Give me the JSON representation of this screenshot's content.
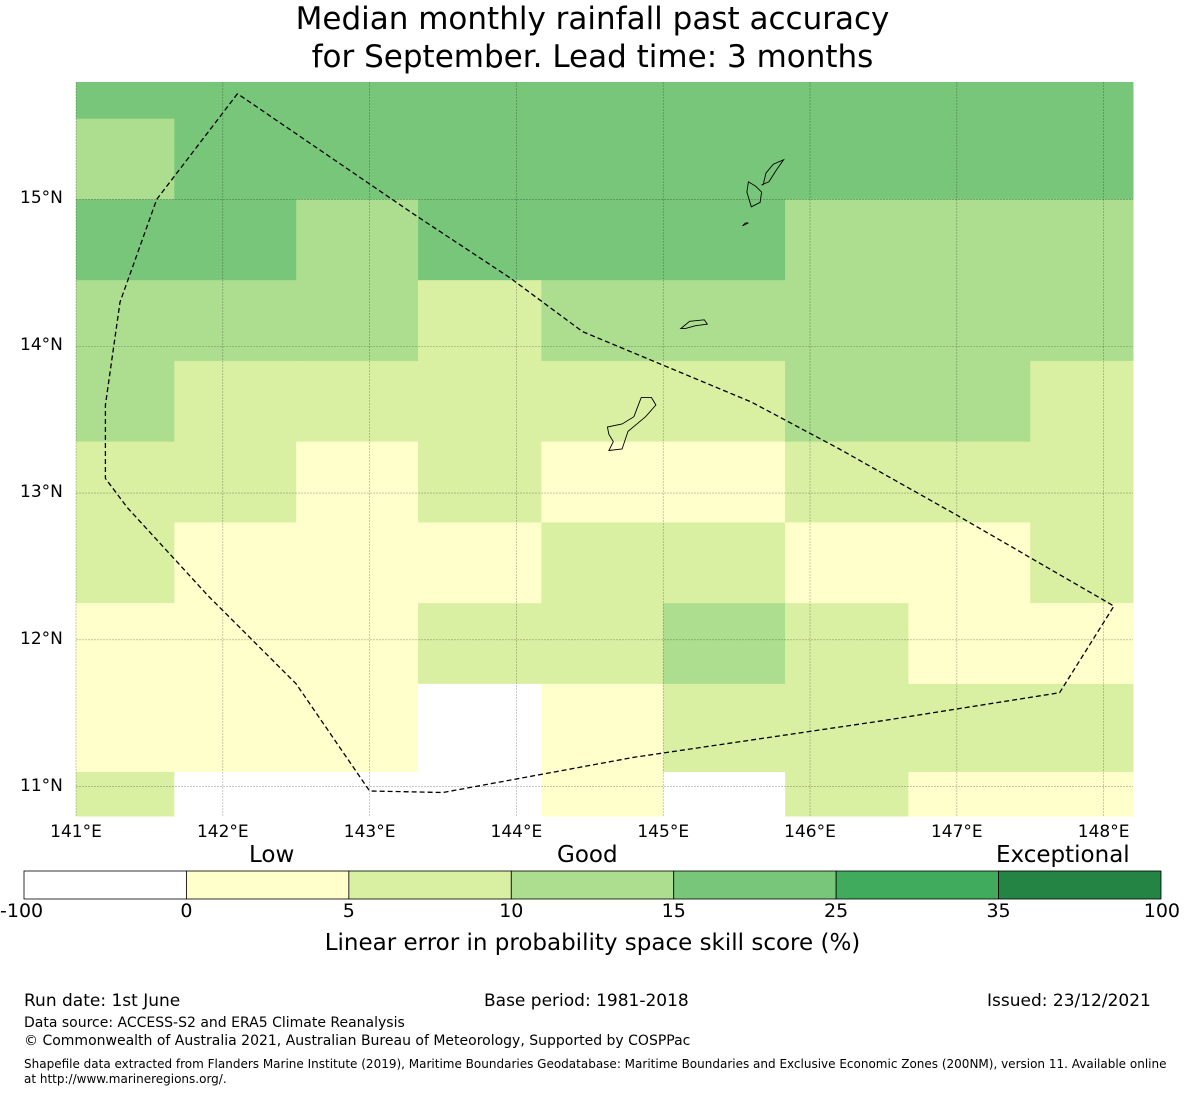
{
  "title": {
    "line1": "Median monthly rainfall past accuracy",
    "line2": "for September. Lead time: 3 months"
  },
  "map": {
    "lon_range": [
      141.0,
      148.2
    ],
    "lat_range": [
      10.8,
      15.8
    ],
    "lon_ticks": [
      {
        "value": 141,
        "label": "141°E"
      },
      {
        "value": 142,
        "label": "142°E"
      },
      {
        "value": 143,
        "label": "143°E"
      },
      {
        "value": 144,
        "label": "144°E"
      },
      {
        "value": 145,
        "label": "145°E"
      },
      {
        "value": 146,
        "label": "146°E"
      },
      {
        "value": 147,
        "label": "147°E"
      },
      {
        "value": 148,
        "label": "148°E"
      }
    ],
    "lat_ticks": [
      {
        "value": 11,
        "label": "11°N"
      },
      {
        "value": 12,
        "label": "12°N"
      },
      {
        "value": 13,
        "label": "13°N"
      },
      {
        "value": 14,
        "label": "14°N"
      },
      {
        "value": 15,
        "label": "15°N"
      }
    ],
    "grid_lon_edges": [
      141.0,
      141.67,
      142.5,
      143.33,
      144.17,
      145.0,
      145.83,
      146.67,
      147.5,
      148.2
    ],
    "grid_lat_edges": [
      15.8,
      15.55,
      15.0,
      14.45,
      13.9,
      13.35,
      12.8,
      12.25,
      11.7,
      11.1,
      10.8
    ],
    "cell_classes": [
      [
        4,
        4,
        4,
        4,
        4,
        4,
        4,
        4,
        4
      ],
      [
        3,
        4,
        4,
        4,
        4,
        4,
        4,
        4,
        4
      ],
      [
        4,
        4,
        3,
        4,
        4,
        4,
        3,
        3,
        3
      ],
      [
        3,
        3,
        3,
        2,
        3,
        3,
        3,
        3,
        3
      ],
      [
        3,
        2,
        2,
        2,
        2,
        2,
        3,
        3,
        2
      ],
      [
        2,
        2,
        1,
        2,
        1,
        1,
        2,
        2,
        2
      ],
      [
        2,
        1,
        1,
        1,
        2,
        2,
        1,
        1,
        2
      ],
      [
        1,
        1,
        1,
        2,
        2,
        3,
        2,
        1,
        1
      ],
      [
        1,
        1,
        1,
        0,
        1,
        2,
        2,
        2,
        2
      ],
      [
        2,
        0,
        0,
        0,
        1,
        0,
        2,
        1,
        1
      ]
    ],
    "eez_boundary": [
      [
        142.1,
        15.72
      ],
      [
        141.55,
        15.0
      ],
      [
        141.3,
        14.3
      ],
      [
        141.2,
        13.6
      ],
      [
        141.2,
        13.1
      ],
      [
        141.35,
        12.9
      ],
      [
        141.9,
        12.3
      ],
      [
        142.5,
        11.7
      ],
      [
        143.0,
        10.97
      ],
      [
        143.5,
        10.96
      ],
      [
        144.8,
        11.2
      ],
      [
        146.5,
        11.45
      ],
      [
        147.7,
        11.64
      ],
      [
        148.07,
        12.23
      ],
      [
        147.0,
        12.85
      ],
      [
        146.2,
        13.3
      ],
      [
        145.6,
        13.62
      ],
      [
        145.05,
        13.85
      ],
      [
        144.45,
        14.1
      ],
      [
        143.95,
        14.47
      ],
      [
        143.3,
        14.9
      ],
      [
        142.1,
        15.72
      ]
    ],
    "islands": [
      [
        [
          144.63,
          13.29
        ],
        [
          144.72,
          13.3
        ],
        [
          144.76,
          13.42
        ],
        [
          144.88,
          13.52
        ],
        [
          144.95,
          13.6
        ],
        [
          144.92,
          13.65
        ],
        [
          144.85,
          13.65
        ],
        [
          144.8,
          13.52
        ],
        [
          144.72,
          13.47
        ],
        [
          144.62,
          13.45
        ],
        [
          144.63,
          13.4
        ],
        [
          144.66,
          13.35
        ],
        [
          144.63,
          13.29
        ]
      ],
      [
        [
          145.12,
          14.12
        ],
        [
          145.18,
          14.17
        ],
        [
          145.28,
          14.18
        ],
        [
          145.3,
          14.15
        ],
        [
          145.22,
          14.14
        ],
        [
          145.15,
          14.12
        ]
      ],
      [
        [
          145.6,
          14.95
        ],
        [
          145.66,
          14.98
        ],
        [
          145.67,
          15.05
        ],
        [
          145.63,
          15.09
        ],
        [
          145.58,
          15.12
        ],
        [
          145.57,
          15.05
        ],
        [
          145.6,
          14.95
        ]
      ],
      [
        [
          145.54,
          14.82
        ],
        [
          145.58,
          14.84
        ],
        [
          145.56,
          14.84
        ]
      ],
      [
        [
          145.67,
          15.1
        ],
        [
          145.72,
          15.12
        ],
        [
          145.77,
          15.2
        ],
        [
          145.82,
          15.27
        ],
        [
          145.75,
          15.24
        ],
        [
          145.7,
          15.18
        ],
        [
          145.68,
          15.1
        ]
      ]
    ]
  },
  "colorbar": {
    "categories": {
      "low": "Low",
      "good": "Good",
      "exceptional": "Exceptional"
    },
    "tick_labels": [
      "-100",
      "0",
      "5",
      "10",
      "15",
      "25",
      "35",
      "100"
    ],
    "colors": [
      "#ffffff",
      "#ffffcc",
      "#d9f0a3",
      "#addd8e",
      "#78c679",
      "#41ab5d",
      "#238443"
    ],
    "title": "Linear error in probability space skill score (%)"
  },
  "footer": {
    "run_date": "Run date: 1st June",
    "base_period": "Base period: 1981-2018",
    "issued": "Issued: 23/12/2021",
    "data_source": "Data source: ACCESS-S2 and ERA5 Climate Reanalysis",
    "copyright": "© Commonwealth of Australia 2021, Australian Bureau of Meteorology, Supported by COSPPac",
    "shapefile": "Shapefile data extracted from Flanders Marine Institute (2019), Maritime Boundaries Geodatabase: Maritime Boundaries and Exclusive Economic Zones (200NM), version 11. Available online at http://www.marineregions.org/."
  }
}
